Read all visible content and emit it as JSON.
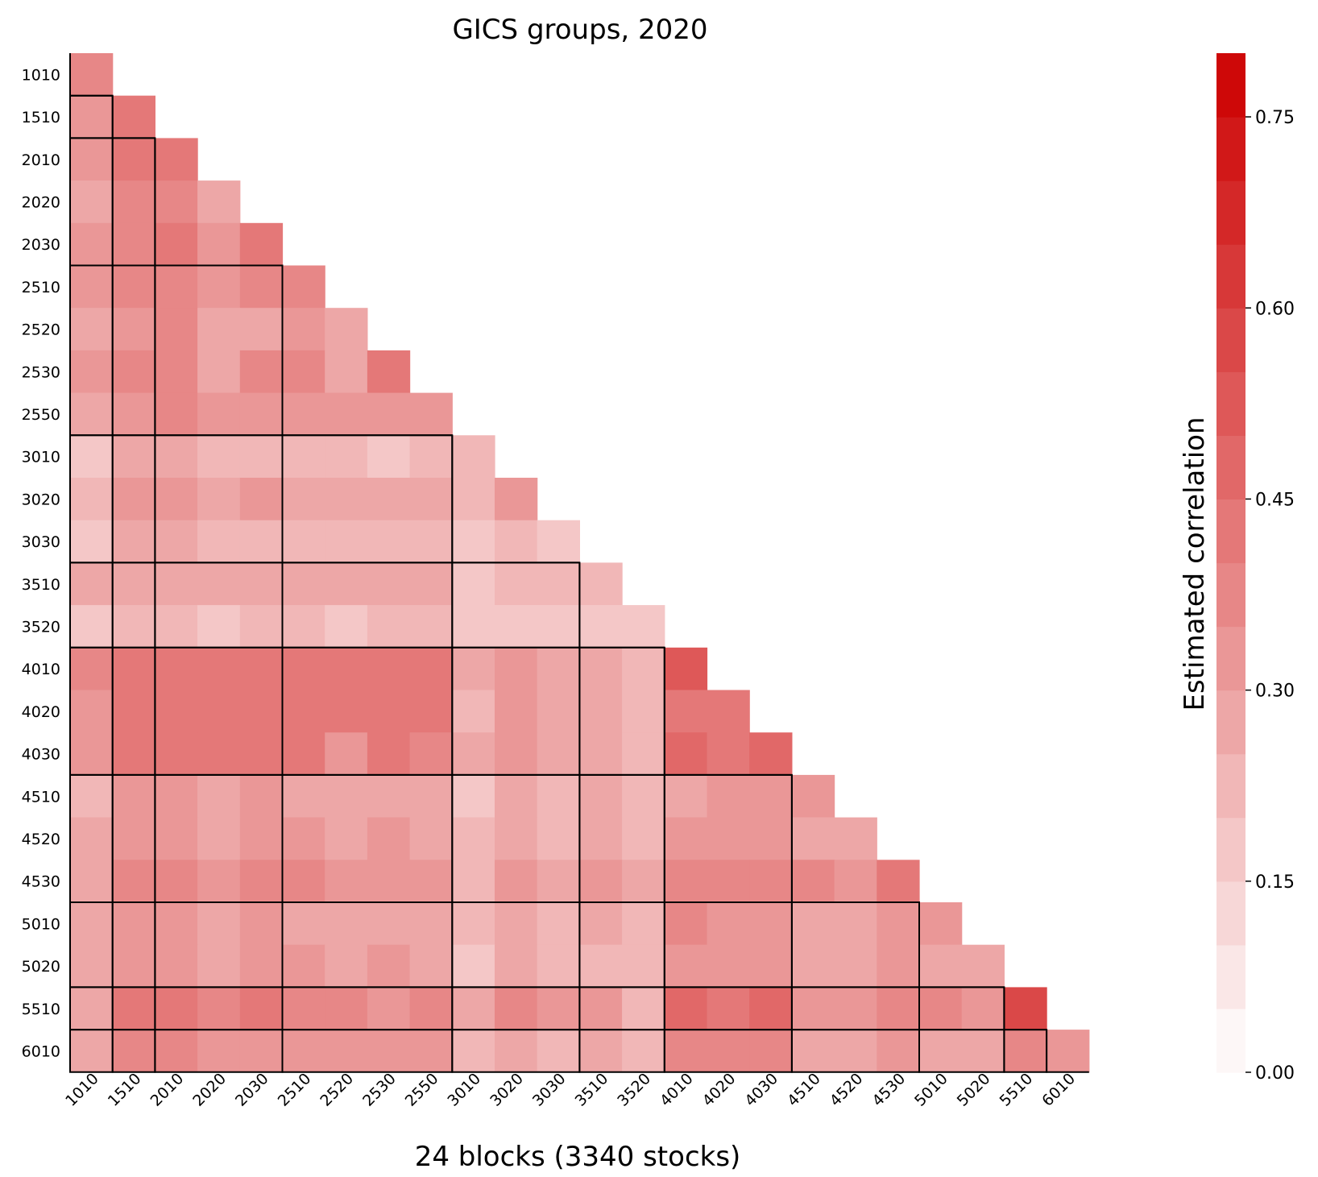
{
  "chart_data": {
    "type": "heatmap",
    "title": "GICS groups, 2020",
    "xlabel": "24 blocks (3340 stocks)",
    "colorbar_label": "Estimated correlation",
    "colorbar_range": [
      0,
      0.8
    ],
    "colorbar_ticks": [
      "0.00",
      "0.15",
      "0.30",
      "0.45",
      "0.60",
      "0.75"
    ],
    "colorbar_tick_values": [
      0,
      0.15,
      0.3,
      0.45,
      0.6,
      0.75
    ],
    "colormap": {
      "low": "#ffffff",
      "high": "#cc0000",
      "levels": 16
    },
    "sectors": [
      "10",
      "15",
      "20",
      "25",
      "30",
      "35",
      "40",
      "45",
      "50",
      "55",
      "60"
    ],
    "labels": [
      "1010",
      "1510",
      "2010",
      "2020",
      "2030",
      "2510",
      "2520",
      "2530",
      "2550",
      "3010",
      "3020",
      "3030",
      "3510",
      "3520",
      "4010",
      "4020",
      "4030",
      "4510",
      "4520",
      "4530",
      "5010",
      "5020",
      "5510",
      "6010"
    ],
    "matrix": [
      [
        0.36
      ],
      [
        0.32,
        0.42
      ],
      [
        0.32,
        0.42,
        0.44
      ],
      [
        0.28,
        0.38,
        0.38,
        0.3
      ],
      [
        0.32,
        0.38,
        0.44,
        0.32,
        0.44
      ],
      [
        0.32,
        0.38,
        0.38,
        0.32,
        0.36,
        0.38
      ],
      [
        0.28,
        0.34,
        0.38,
        0.3,
        0.3,
        0.32,
        0.3
      ],
      [
        0.32,
        0.36,
        0.38,
        0.3,
        0.36,
        0.38,
        0.3,
        0.4
      ],
      [
        0.28,
        0.34,
        0.38,
        0.32,
        0.32,
        0.32,
        0.32,
        0.32,
        0.34
      ],
      [
        0.16,
        0.28,
        0.3,
        0.24,
        0.24,
        0.24,
        0.22,
        0.18,
        0.24,
        0.22
      ],
      [
        0.24,
        0.32,
        0.32,
        0.28,
        0.32,
        0.28,
        0.28,
        0.28,
        0.28,
        0.24,
        0.32
      ],
      [
        0.18,
        0.28,
        0.3,
        0.22,
        0.22,
        0.22,
        0.22,
        0.22,
        0.22,
        0.18,
        0.22,
        0.16
      ],
      [
        0.26,
        0.3,
        0.3,
        0.3,
        0.3,
        0.28,
        0.28,
        0.28,
        0.28,
        0.18,
        0.24,
        0.24,
        0.22
      ],
      [
        0.18,
        0.24,
        0.24,
        0.16,
        0.22,
        0.22,
        0.16,
        0.24,
        0.24,
        0.18,
        0.18,
        0.18,
        0.18,
        0.18
      ],
      [
        0.38,
        0.42,
        0.42,
        0.4,
        0.42,
        0.4,
        0.4,
        0.4,
        0.4,
        0.28,
        0.32,
        0.3,
        0.3,
        0.24,
        0.52
      ],
      [
        0.34,
        0.42,
        0.42,
        0.4,
        0.4,
        0.4,
        0.4,
        0.4,
        0.4,
        0.24,
        0.32,
        0.28,
        0.3,
        0.24,
        0.44,
        0.44
      ],
      [
        0.34,
        0.42,
        0.42,
        0.4,
        0.44,
        0.4,
        0.34,
        0.4,
        0.36,
        0.28,
        0.32,
        0.28,
        0.3,
        0.24,
        0.48,
        0.44,
        0.48
      ],
      [
        0.24,
        0.32,
        0.32,
        0.28,
        0.32,
        0.28,
        0.28,
        0.28,
        0.28,
        0.18,
        0.26,
        0.24,
        0.28,
        0.22,
        0.3,
        0.32,
        0.32,
        0.32
      ],
      [
        0.28,
        0.32,
        0.32,
        0.28,
        0.32,
        0.32,
        0.28,
        0.32,
        0.28,
        0.22,
        0.28,
        0.24,
        0.28,
        0.22,
        0.34,
        0.34,
        0.34,
        0.28,
        0.28
      ],
      [
        0.28,
        0.38,
        0.38,
        0.34,
        0.38,
        0.38,
        0.34,
        0.34,
        0.34,
        0.24,
        0.32,
        0.28,
        0.32,
        0.3,
        0.38,
        0.38,
        0.38,
        0.38,
        0.34,
        0.44
      ],
      [
        0.28,
        0.32,
        0.32,
        0.28,
        0.32,
        0.28,
        0.28,
        0.28,
        0.28,
        0.22,
        0.28,
        0.24,
        0.28,
        0.24,
        0.38,
        0.32,
        0.32,
        0.28,
        0.28,
        0.32,
        0.32
      ],
      [
        0.28,
        0.32,
        0.32,
        0.28,
        0.32,
        0.32,
        0.28,
        0.32,
        0.28,
        0.18,
        0.28,
        0.24,
        0.24,
        0.2,
        0.32,
        0.32,
        0.32,
        0.28,
        0.28,
        0.32,
        0.3,
        0.3
      ],
      [
        0.3,
        0.4,
        0.42,
        0.38,
        0.42,
        0.38,
        0.38,
        0.34,
        0.38,
        0.3,
        0.36,
        0.32,
        0.32,
        0.24,
        0.46,
        0.42,
        0.46,
        0.34,
        0.34,
        0.38,
        0.36,
        0.34,
        0.6
      ],
      [
        0.28,
        0.36,
        0.36,
        0.34,
        0.34,
        0.34,
        0.34,
        0.34,
        0.34,
        0.24,
        0.28,
        0.24,
        0.28,
        0.2,
        0.36,
        0.36,
        0.36,
        0.28,
        0.28,
        0.32,
        0.28,
        0.28,
        0.36,
        0.34
      ]
    ]
  }
}
